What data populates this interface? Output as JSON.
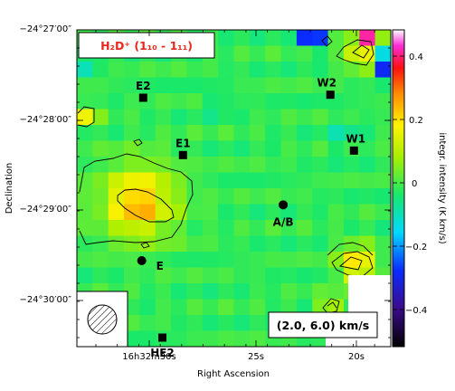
{
  "chart_data": {
    "type": "heatmap",
    "title": "H₂D⁺ (1₁₀ - 1₁₁)",
    "xlabel": "Right Ascension",
    "ylabel": "Declination",
    "x_ticks": [
      "16h32m30s",
      "25s",
      "20s"
    ],
    "y_ticks": [
      "−24°27′00″",
      "−24°28′00″",
      "−24°29′00″",
      "−24°30′00″"
    ],
    "colorbar_label": "integr. intensity (K km/s)",
    "colorbar_ticks": [
      "0.4",
      "0.2",
      "0",
      "−0.2",
      "−0.4"
    ],
    "colorbar_range": [
      -0.5,
      0.5
    ],
    "velocity_range_label": "(2.0, 6.0) km/s",
    "sources": [
      {
        "name": "E2",
        "marker": "square",
        "ra_offset_arcsec": 35,
        "dec_offset_arcsec": -45
      },
      {
        "name": "E1",
        "marker": "square",
        "ra_offset_arcsec": 8,
        "dec_offset_arcsec": -83
      },
      {
        "name": "W2",
        "marker": "square",
        "ra_offset_arcsec": -92,
        "dec_offset_arcsec": -43
      },
      {
        "name": "W1",
        "marker": "square",
        "ra_offset_arcsec": -108,
        "dec_offset_arcsec": -80
      },
      {
        "name": "A/B",
        "marker": "circle",
        "ra_offset_arcsec": -60,
        "dec_offset_arcsec": -116
      },
      {
        "name": "E",
        "marker": "circle",
        "ra_offset_arcsec": 36,
        "dec_offset_arcsec": -153
      },
      {
        "name": "HE2",
        "marker": "square",
        "ra_offset_arcsec": 22,
        "dec_offset_arcsec": -204
      }
    ]
  }
}
